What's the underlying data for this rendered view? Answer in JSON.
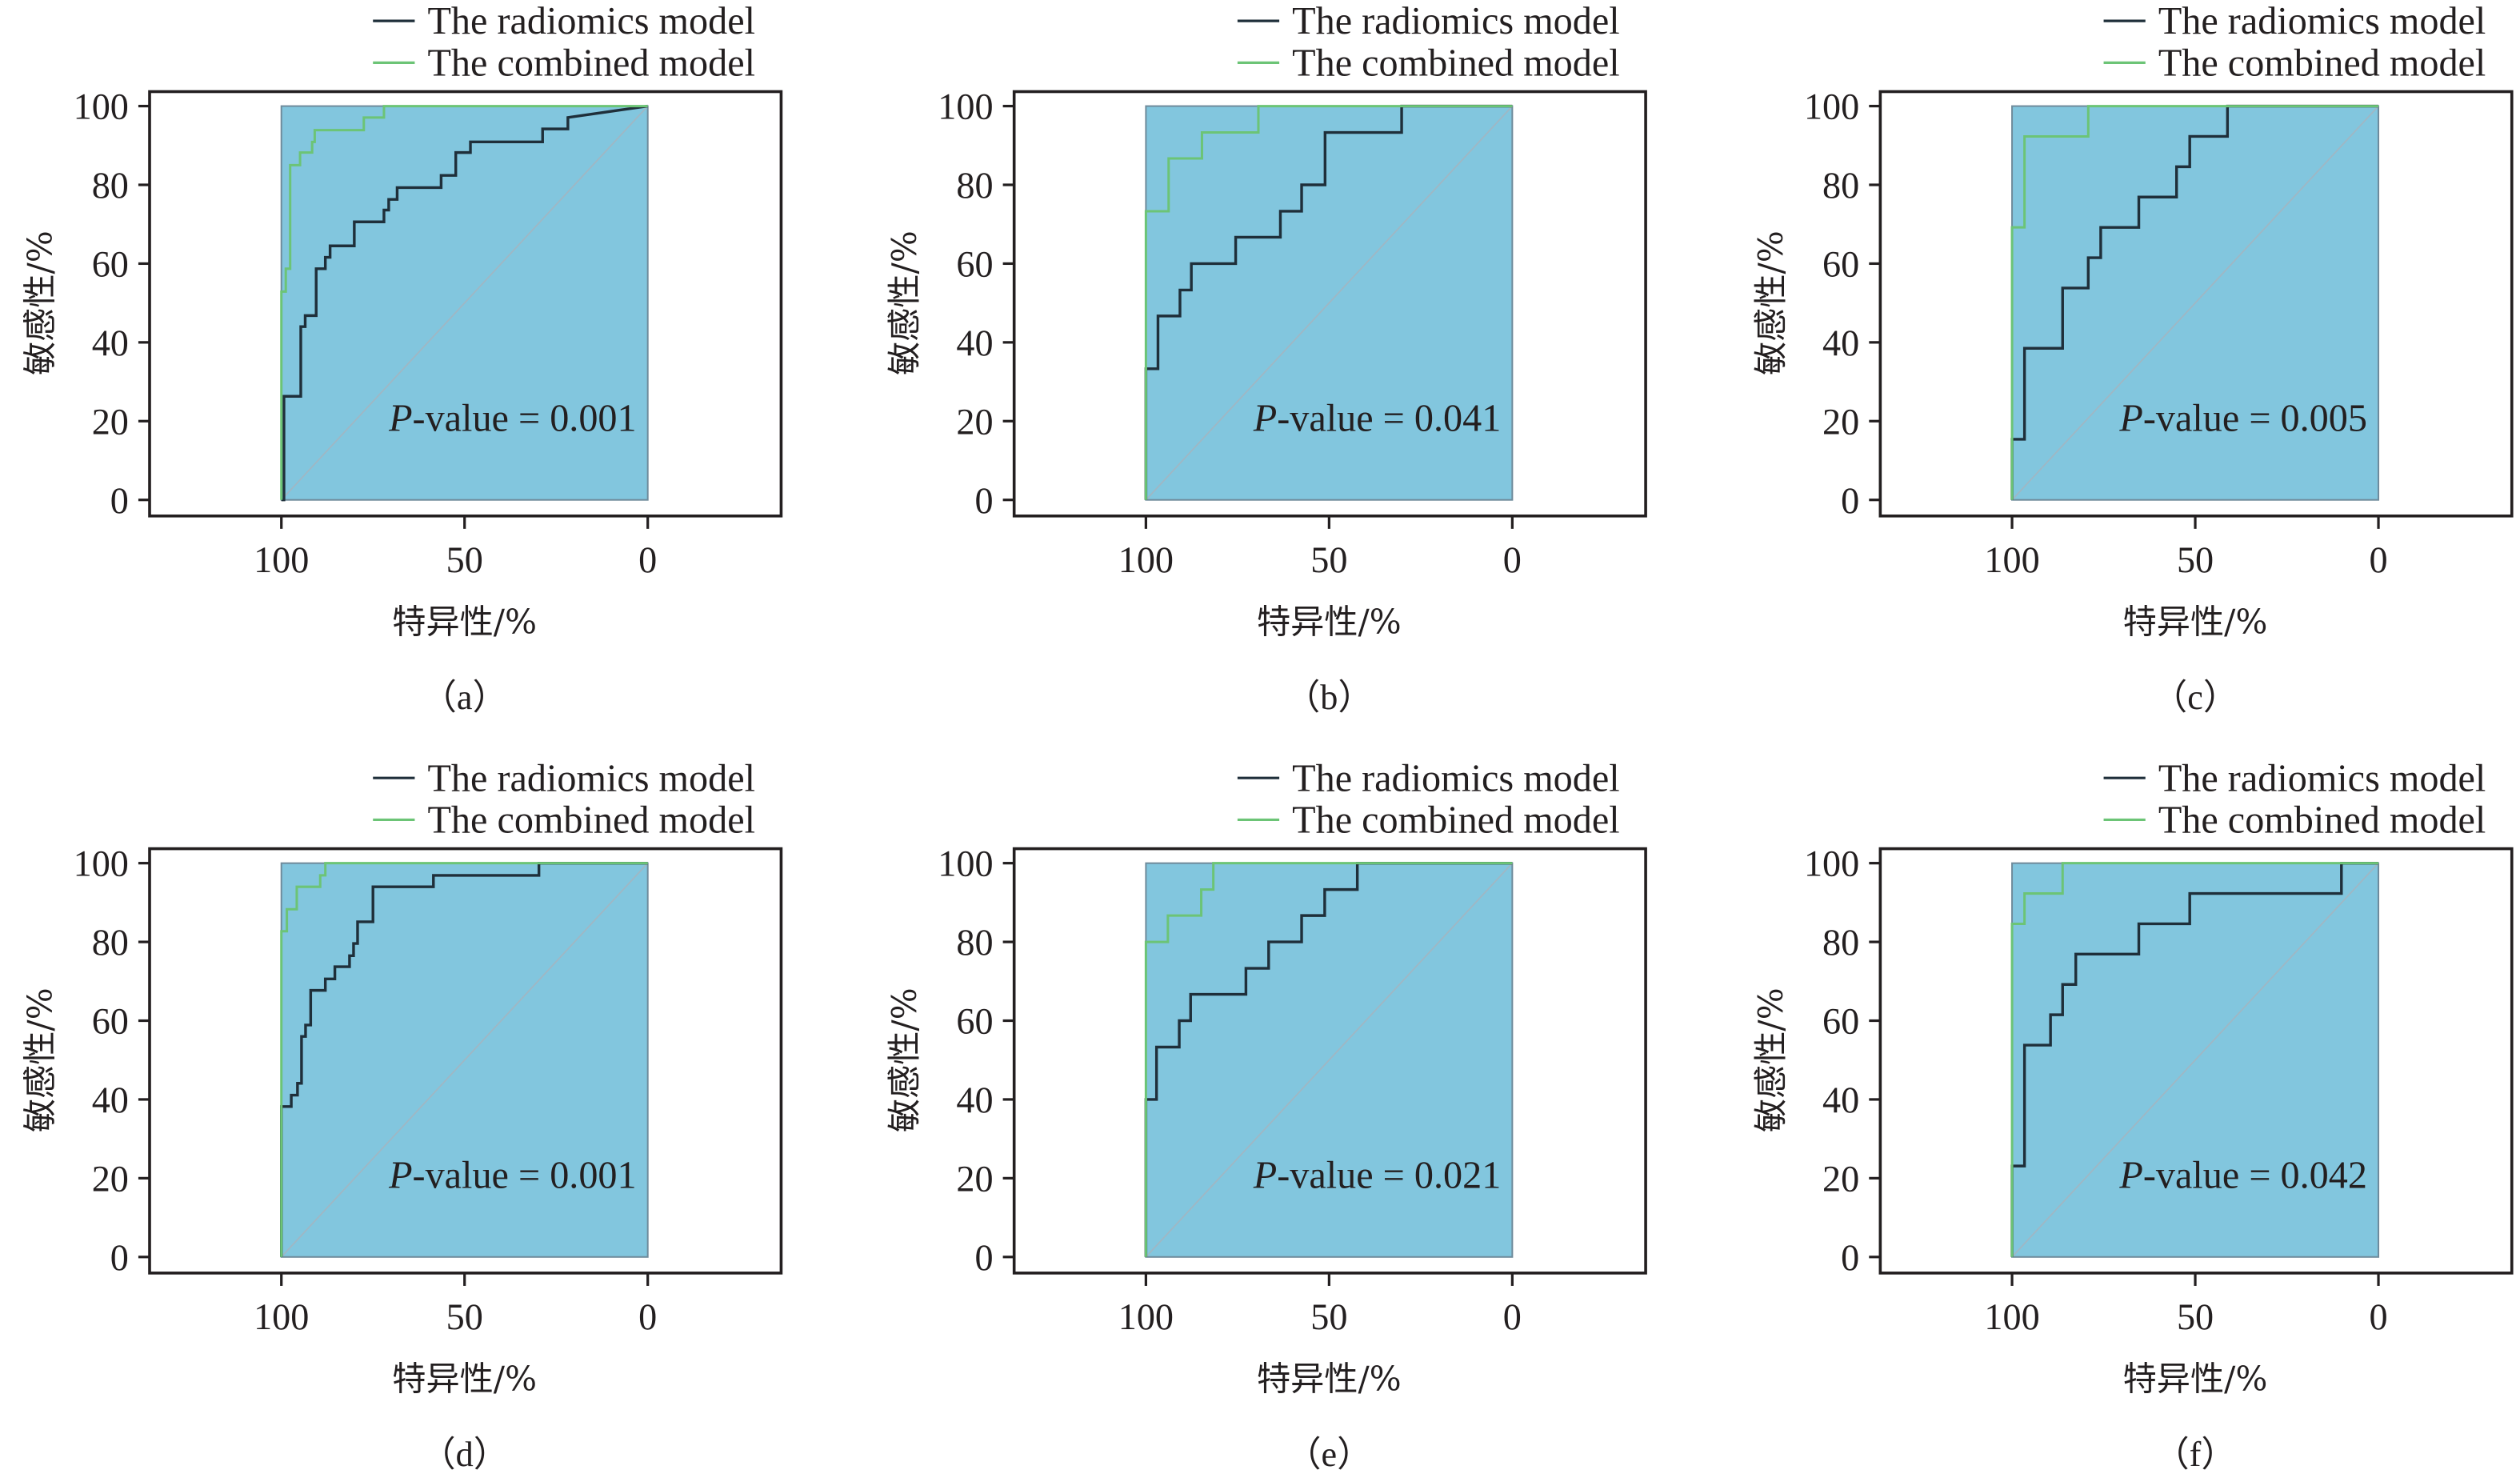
{
  "figure": {
    "colors": {
      "radiomics": "#1f2f3a",
      "combined": "#6cc476",
      "fill": "#82c6de",
      "plot_border": "#6f8b9b",
      "diagonal": "#9fb7c4",
      "frame": "#231f20"
    }
  },
  "chart_data": [
    {
      "type": "line",
      "panel": "(a)",
      "caption": "（a）",
      "xlabel": "特异性/%",
      "ylabel": "敏感性/%",
      "xlim": [
        100,
        0
      ],
      "ylim": [
        0,
        100
      ],
      "xticks": [
        "100",
        "50",
        "0"
      ],
      "yticks": [
        "0",
        "20",
        "40",
        "60",
        "80",
        "100"
      ],
      "legend": [
        "The radiomics model",
        "The combined model"
      ],
      "legend_position": "top-right",
      "annotation": {
        "italic": "P",
        "text": "-value = 0.001"
      },
      "series": [
        {
          "name": "The radiomics model",
          "x_specificity": [
            100,
            99.3,
            99.3,
            94.7,
            94.7,
            93.5,
            93.5,
            90.5,
            90.5,
            88,
            88,
            86.7,
            86.7,
            80.1,
            80.1,
            72,
            72,
            70.7,
            70.7,
            68.4,
            68.4,
            56.4,
            56.4,
            52.4,
            52.4,
            48.4,
            48.4,
            28.7,
            28.7,
            21.8,
            21.8,
            0
          ],
          "y_sensitivity": [
            0,
            0,
            26.3,
            26.3,
            44,
            44,
            46.8,
            46.8,
            58.7,
            58.7,
            61.6,
            61.6,
            64.5,
            64.5,
            70.6,
            70.6,
            73.6,
            73.6,
            76.3,
            76.3,
            79.3,
            79.3,
            82.4,
            82.4,
            88.2,
            88.2,
            90.9,
            90.9,
            94.2,
            94.2,
            97.1,
            100
          ]
        },
        {
          "name": "The combined model",
          "x_specificity": [
            100,
            100,
            98.8,
            98.8,
            97.6,
            97.6,
            94.9,
            94.9,
            91.6,
            91.6,
            90.9,
            90.9,
            77.5,
            77.5,
            72,
            72,
            0
          ],
          "y_sensitivity": [
            0,
            52.9,
            52.9,
            58.7,
            58.7,
            85,
            85,
            88.2,
            88.2,
            90.9,
            90.9,
            93.9,
            93.9,
            97.1,
            97.1,
            100,
            100
          ]
        }
      ]
    },
    {
      "type": "line",
      "panel": "(b)",
      "caption": "（b）",
      "xlabel": "特异性/%",
      "ylabel": "敏感性/%",
      "xlim": [
        100,
        0
      ],
      "ylim": [
        0,
        100
      ],
      "xticks": [
        "100",
        "50",
        "0"
      ],
      "yticks": [
        "0",
        "20",
        "40",
        "60",
        "80",
        "100"
      ],
      "legend": [
        "The radiomics model",
        "The combined model"
      ],
      "legend_position": "top-right",
      "annotation": {
        "italic": "P",
        "text": "-value = 0.041"
      },
      "series": [
        {
          "name": "The radiomics model",
          "x_specificity": [
            100,
            100,
            96.7,
            96.7,
            90.7,
            90.7,
            87.6,
            87.6,
            75.5,
            75.5,
            63.3,
            63.3,
            57.5,
            57.5,
            51.1,
            51.1,
            30.2,
            30.2,
            0
          ],
          "y_sensitivity": [
            0,
            33.3,
            33.3,
            46.7,
            46.7,
            53.3,
            53.3,
            60,
            60,
            66.7,
            66.7,
            73.3,
            73.3,
            80,
            80,
            93.3,
            93.3,
            100,
            100
          ]
        },
        {
          "name": "The combined model",
          "x_specificity": [
            100,
            100,
            93.8,
            93.8,
            84.7,
            84.7,
            69.3,
            69.3,
            0
          ],
          "y_sensitivity": [
            0,
            73.3,
            73.3,
            86.7,
            86.7,
            93.3,
            93.3,
            100,
            100
          ]
        }
      ]
    },
    {
      "type": "line",
      "panel": "(c)",
      "caption": "（c）",
      "xlabel": "特异性/%",
      "ylabel": "敏感性/%",
      "xlim": [
        100,
        0
      ],
      "ylim": [
        0,
        100
      ],
      "xticks": [
        "100",
        "50",
        "0"
      ],
      "yticks": [
        "0",
        "20",
        "40",
        "60",
        "80",
        "100"
      ],
      "legend": [
        "The radiomics model",
        "The combined model"
      ],
      "legend_position": "top-right",
      "annotation": {
        "italic": "P",
        "text": "-value = 0.005"
      },
      "series": [
        {
          "name": "The radiomics model",
          "x_specificity": [
            100,
            100,
            96.6,
            96.6,
            86.2,
            86.2,
            79.2,
            79.2,
            75.8,
            75.8,
            65.4,
            65.4,
            55.1,
            55.1,
            51.5,
            51.5,
            41.2,
            41.2,
            0
          ],
          "y_sensitivity": [
            0,
            15.4,
            15.4,
            38.5,
            38.5,
            53.8,
            53.8,
            61.5,
            61.5,
            69.2,
            69.2,
            76.9,
            76.9,
            84.6,
            84.6,
            92.3,
            92.3,
            100,
            100
          ]
        },
        {
          "name": "The combined model",
          "x_specificity": [
            100,
            100,
            96.6,
            96.6,
            79.2,
            79.2,
            0
          ],
          "y_sensitivity": [
            0,
            69.2,
            69.2,
            92.3,
            92.3,
            100,
            100
          ]
        }
      ]
    },
    {
      "type": "line",
      "panel": "(d)",
      "caption": "（d）",
      "xlabel": "特异性/%",
      "ylabel": "敏感性/%",
      "xlim": [
        100,
        0
      ],
      "ylim": [
        0,
        100
      ],
      "xticks": [
        "100",
        "50",
        "0"
      ],
      "yticks": [
        "0",
        "20",
        "40",
        "60",
        "80",
        "100"
      ],
      "legend": [
        "The radiomics model",
        "The combined model"
      ],
      "legend_position": "top-right",
      "annotation": {
        "italic": "P",
        "text": "-value = 0.001"
      },
      "series": [
        {
          "name": "The radiomics model",
          "x_specificity": [
            100,
            100,
            97.3,
            97.3,
            95.6,
            95.6,
            94.5,
            94.5,
            93.4,
            93.4,
            92,
            92,
            88,
            88,
            85.4,
            85.4,
            81.4,
            81.4,
            80.3,
            80.3,
            79.2,
            79.2,
            75,
            75,
            58.5,
            58.5,
            29.7,
            29.7,
            0
          ],
          "y_sensitivity": [
            0,
            38.2,
            38.2,
            41.1,
            41.1,
            44.1,
            44.1,
            56,
            56,
            58.9,
            58.9,
            67.7,
            67.7,
            70.6,
            70.6,
            73.7,
            73.7,
            76.5,
            76.5,
            79.6,
            79.6,
            85.1,
            85.1,
            94,
            94,
            96.9,
            96.9,
            100,
            100
          ]
        },
        {
          "name": "The combined model",
          "x_specificity": [
            100,
            100,
            98.5,
            98.5,
            95.8,
            95.8,
            89.4,
            89.4,
            88,
            88,
            0
          ],
          "y_sensitivity": [
            0,
            82.7,
            82.7,
            88.3,
            88.3,
            94,
            94,
            96.9,
            96.9,
            100,
            100
          ]
        }
      ]
    },
    {
      "type": "line",
      "panel": "(e)",
      "caption": "（e）",
      "xlabel": "特异性/%",
      "ylabel": "敏感性/%",
      "xlim": [
        100,
        0
      ],
      "ylim": [
        0,
        100
      ],
      "xticks": [
        "100",
        "50",
        "0"
      ],
      "yticks": [
        "0",
        "20",
        "40",
        "60",
        "80",
        "100"
      ],
      "legend": [
        "The radiomics model",
        "The combined model"
      ],
      "legend_position": "top-right",
      "annotation": {
        "italic": "P",
        "text": "-value = 0.021"
      },
      "series": [
        {
          "name": "The radiomics model",
          "x_specificity": [
            100,
            100,
            97.1,
            97.1,
            90.9,
            90.9,
            87.8,
            87.8,
            72.7,
            72.7,
            66.5,
            66.5,
            57.5,
            57.5,
            51.2,
            51.2,
            42.3,
            42.3,
            0
          ],
          "y_sensitivity": [
            0,
            40,
            40,
            53.3,
            53.3,
            60,
            60,
            66.7,
            66.7,
            73.3,
            73.3,
            80,
            80,
            86.7,
            86.7,
            93.3,
            93.3,
            100,
            100
          ]
        },
        {
          "name": "The combined model",
          "x_specificity": [
            100,
            100,
            94,
            94,
            84.9,
            84.9,
            81.6,
            81.6,
            0
          ],
          "y_sensitivity": [
            0,
            80,
            80,
            86.7,
            86.7,
            93.3,
            93.3,
            100,
            100
          ]
        }
      ]
    },
    {
      "type": "line",
      "panel": "(f)",
      "caption": "（f）",
      "xlabel": "特异性/%",
      "ylabel": "敏感性/%",
      "xlim": [
        100,
        0
      ],
      "ylim": [
        0,
        100
      ],
      "xticks": [
        "100",
        "50",
        "0"
      ],
      "yticks": [
        "0",
        "20",
        "40",
        "60",
        "80",
        "100"
      ],
      "legend": [
        "The radiomics model",
        "The combined model"
      ],
      "legend_position": "top-right",
      "annotation": {
        "italic": "P",
        "text": "-value = 0.042"
      },
      "series": [
        {
          "name": "The radiomics model",
          "x_specificity": [
            100,
            100,
            96.6,
            96.6,
            89.5,
            89.5,
            86.2,
            86.2,
            82.6,
            82.6,
            65.4,
            65.4,
            51.5,
            51.5,
            10.1,
            10.1,
            0
          ],
          "y_sensitivity": [
            0,
            23.1,
            23.1,
            53.8,
            53.8,
            61.5,
            61.5,
            69.2,
            69.2,
            76.9,
            76.9,
            84.6,
            84.6,
            92.3,
            92.3,
            100,
            100
          ]
        },
        {
          "name": "The combined model",
          "x_specificity": [
            100,
            100,
            96.6,
            96.6,
            86.2,
            86.2,
            0
          ],
          "y_sensitivity": [
            0,
            84.6,
            84.6,
            92.3,
            92.3,
            100,
            100
          ]
        }
      ]
    }
  ]
}
